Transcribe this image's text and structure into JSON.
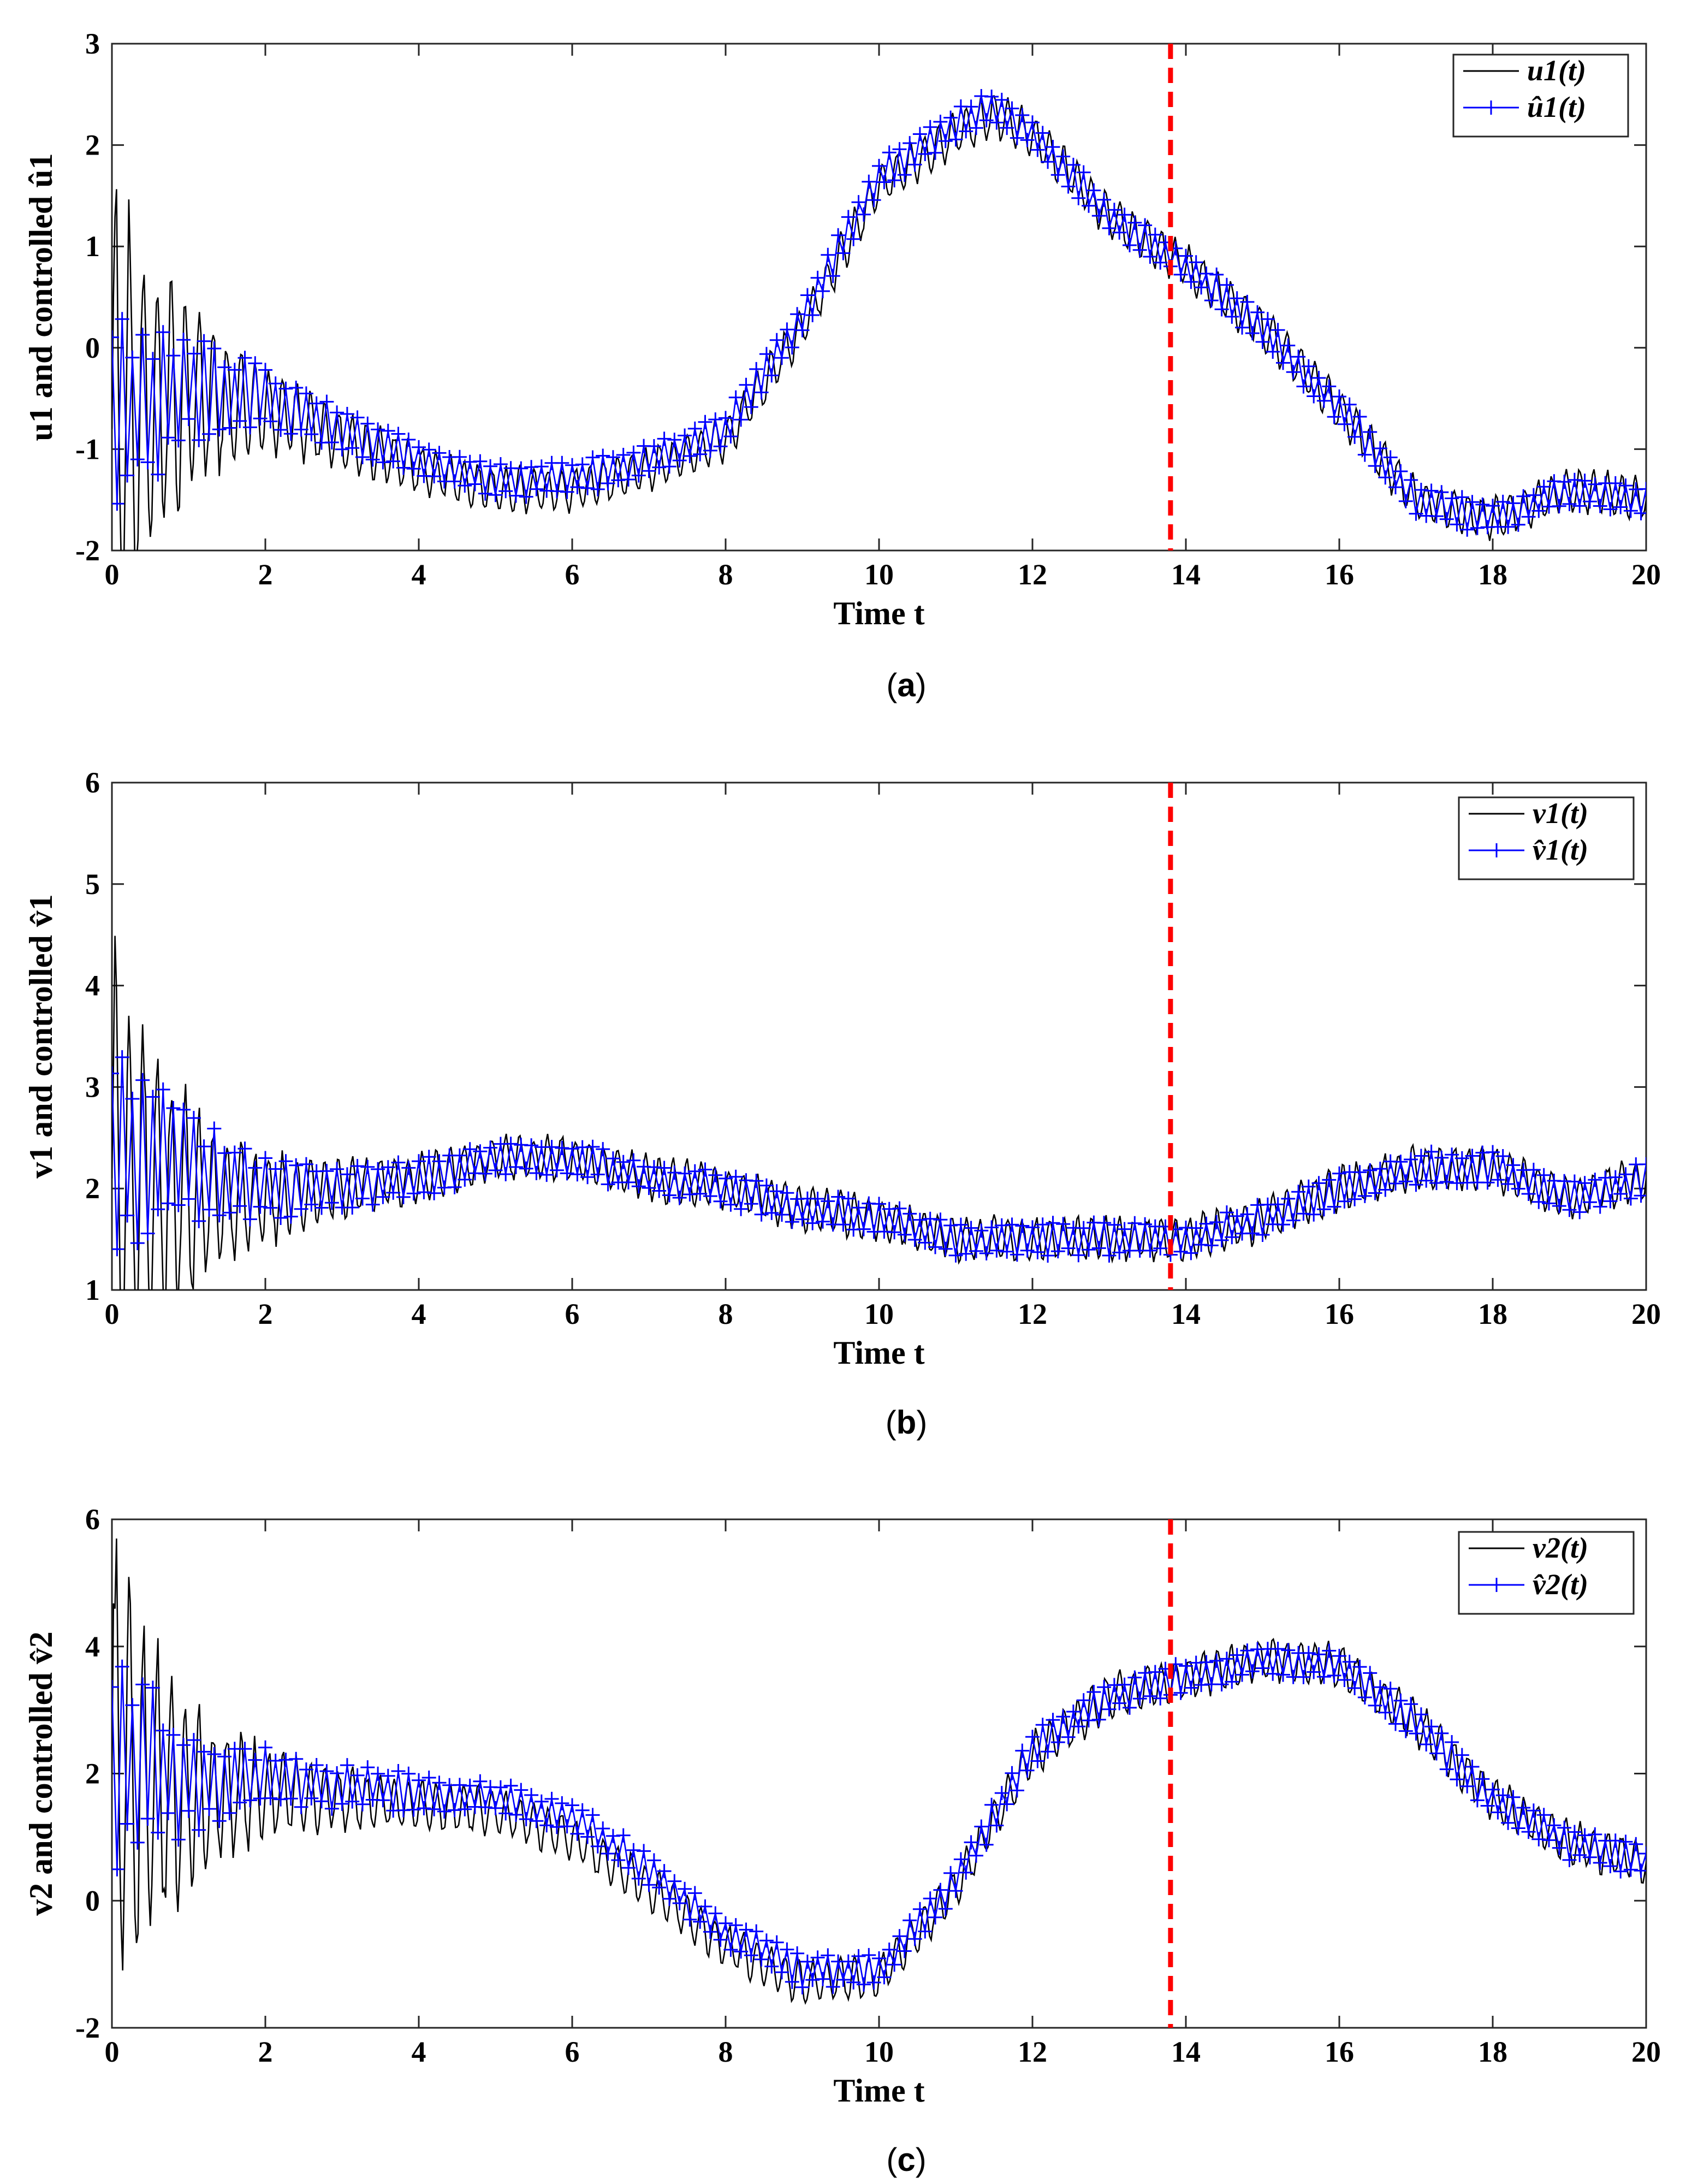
{
  "colors": {
    "series_actual": "#000000",
    "series_controlled": "#0000ff",
    "event_line": "#ff0000",
    "frame": "#262626"
  },
  "chart_data": [
    {
      "type": "line",
      "panel": "a",
      "caption": {
        "open": "(",
        "letter": "a",
        "close": ")"
      },
      "xlabel": "Time t",
      "ylabel": "u1 and controlled û1",
      "xlim": [
        0,
        20
      ],
      "ylim": [
        -2,
        3
      ],
      "xticks": [
        "0",
        "2",
        "4",
        "6",
        "8",
        "10",
        "12",
        "14",
        "16",
        "18",
        "20"
      ],
      "yticks": [
        "-2",
        "-1",
        "0",
        "1",
        "2",
        "3"
      ],
      "event_time": 13.8,
      "legend": [
        "u1(t)",
        "û1(t)"
      ],
      "series": [
        {
          "name": "u1(t)",
          "style": "solid-black",
          "x": [
            0,
            1,
            2,
            3,
            4,
            5,
            6,
            7,
            8,
            9,
            10,
            11,
            11.5,
            12,
            13,
            14,
            15,
            16,
            17,
            18,
            19,
            20
          ],
          "values": [
            -0.8,
            -0.5,
            -0.6,
            -0.9,
            -1.2,
            -1.4,
            -1.4,
            -1.2,
            -0.9,
            0.2,
            1.6,
            2.1,
            2.3,
            2.1,
            1.3,
            0.8,
            0.2,
            -0.6,
            -1.5,
            -1.7,
            -1.4,
            -1.5
          ]
        },
        {
          "name": "û1(t)",
          "style": "plus-blue",
          "x": [
            0,
            1,
            2,
            3,
            4,
            5,
            6,
            7,
            8,
            9,
            10,
            11,
            11.5,
            12,
            13,
            14,
            15,
            16,
            17,
            18,
            19,
            20
          ],
          "values": [
            -0.7,
            -0.4,
            -0.5,
            -0.8,
            -1.1,
            -1.3,
            -1.3,
            -1.1,
            -0.8,
            0.3,
            1.7,
            2.2,
            2.4,
            2.1,
            1.3,
            0.8,
            0.2,
            -0.6,
            -1.5,
            -1.7,
            -1.4,
            -1.5
          ]
        }
      ]
    },
    {
      "type": "line",
      "panel": "b",
      "caption": {
        "open": "(",
        "letter": "b",
        "close": ")"
      },
      "xlabel": "Time t",
      "ylabel": "v1 and controlled v̂1",
      "xlim": [
        0,
        20
      ],
      "ylim": [
        1,
        6
      ],
      "xticks": [
        "0",
        "2",
        "4",
        "6",
        "8",
        "10",
        "12",
        "14",
        "16",
        "18",
        "20"
      ],
      "yticks": [
        "1",
        "2",
        "3",
        "4",
        "5",
        "6"
      ],
      "event_time": 13.8,
      "legend": [
        "v1(t)",
        "v̂1(t)"
      ],
      "series": [
        {
          "name": "v1(t)",
          "style": "solid-black",
          "x": [
            0,
            1,
            2,
            3,
            4,
            5,
            6,
            7,
            8,
            9,
            10,
            11,
            12,
            13,
            14,
            15,
            16,
            17,
            18,
            19,
            20
          ],
          "values": [
            2.1,
            1.9,
            1.9,
            2.0,
            2.1,
            2.3,
            2.3,
            2.1,
            2.0,
            1.8,
            1.7,
            1.5,
            1.5,
            1.5,
            1.5,
            1.7,
            2.0,
            2.2,
            2.2,
            1.9,
            2.1
          ]
        },
        {
          "name": "v̂1(t)",
          "style": "plus-blue",
          "x": [
            0,
            1,
            2,
            3,
            4,
            5,
            6,
            7,
            8,
            9,
            10,
            11,
            12,
            13,
            14,
            15,
            16,
            17,
            18,
            19,
            20
          ],
          "values": [
            2.4,
            2.2,
            2.0,
            2.0,
            2.1,
            2.3,
            2.3,
            2.1,
            2.0,
            1.8,
            1.7,
            1.5,
            1.5,
            1.5,
            1.5,
            1.7,
            2.0,
            2.2,
            2.2,
            1.9,
            2.1
          ]
        }
      ]
    },
    {
      "type": "line",
      "panel": "c",
      "caption": {
        "open": "(",
        "letter": "c",
        "close": ")"
      },
      "xlabel": "Time t",
      "ylabel": "v2 and controlled v̂2",
      "xlim": [
        0,
        20
      ],
      "ylim": [
        -2,
        6
      ],
      "xticks": [
        "0",
        "2",
        "4",
        "6",
        "8",
        "10",
        "12",
        "14",
        "16",
        "18",
        "20"
      ],
      "yticks": [
        "-2",
        "0",
        "2",
        "4",
        "6"
      ],
      "event_time": 13.8,
      "legend": [
        "v2(t)",
        "v̂2(t)"
      ],
      "series": [
        {
          "name": "v2(t)",
          "style": "solid-black",
          "x": [
            0,
            1,
            2,
            3,
            4,
            5,
            6,
            7,
            8,
            9,
            10,
            11,
            12,
            13,
            14,
            15,
            16,
            17,
            18,
            19,
            20
          ],
          "values": [
            2.0,
            1.6,
            1.7,
            1.6,
            1.5,
            1.4,
            1.0,
            0.2,
            -0.7,
            -1.3,
            -1.2,
            0.2,
            2.3,
            3.2,
            3.5,
            3.8,
            3.7,
            2.8,
            1.6,
            0.9,
            0.6
          ]
        },
        {
          "name": "v̂2(t)",
          "style": "plus-blue",
          "x": [
            0,
            1,
            2,
            3,
            4,
            5,
            6,
            7,
            8,
            9,
            10,
            11,
            12,
            13,
            14,
            15,
            16,
            17,
            18,
            19,
            20
          ],
          "values": [
            2.3,
            1.9,
            1.9,
            1.8,
            1.7,
            1.6,
            1.3,
            0.5,
            -0.5,
            -1.1,
            -1.1,
            0.3,
            2.4,
            3.2,
            3.5,
            3.8,
            3.7,
            2.8,
            1.6,
            0.9,
            0.6
          ]
        }
      ]
    }
  ]
}
